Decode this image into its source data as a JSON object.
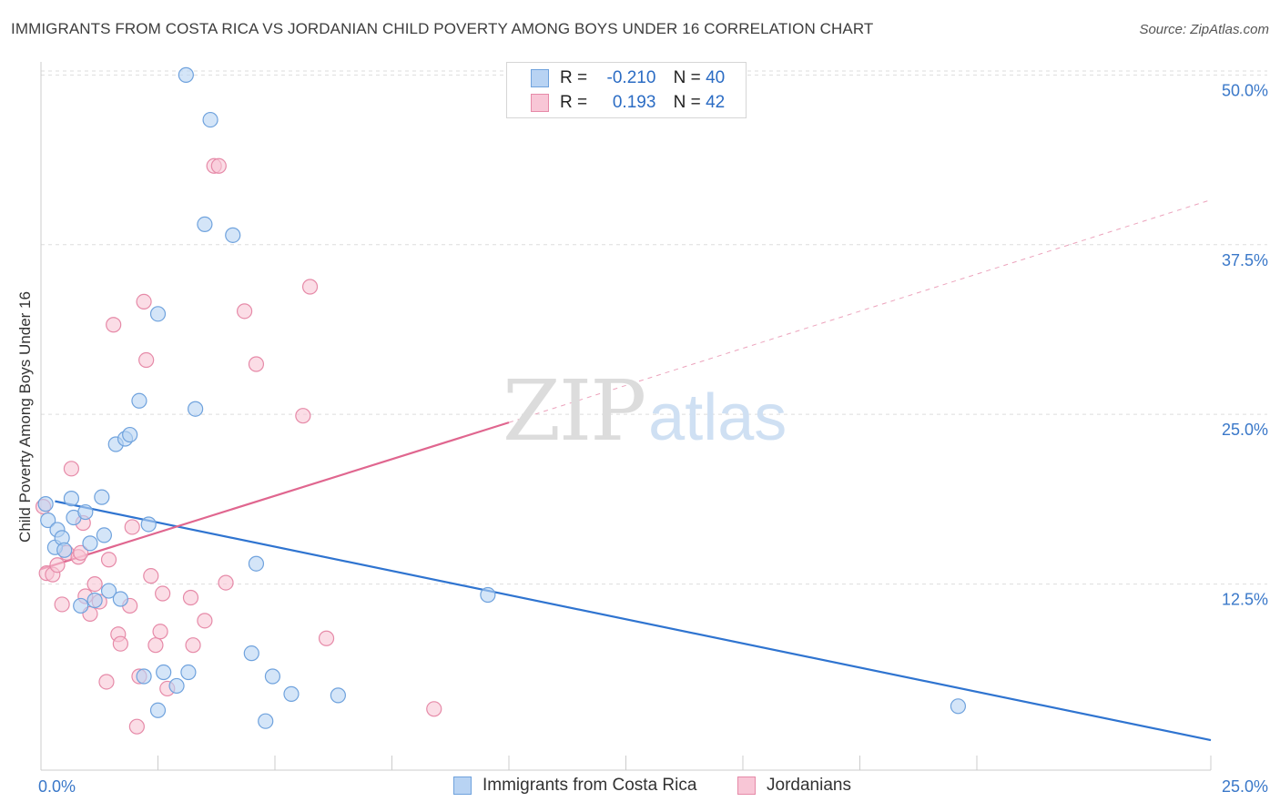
{
  "title": "IMMIGRANTS FROM COSTA RICA VS JORDANIAN CHILD POVERTY AMONG BOYS UNDER 16 CORRELATION CHART",
  "source": "Source: ZipAtlas.com",
  "watermark": {
    "zip": "ZIP",
    "atlas": "atlas"
  },
  "colors": {
    "blue_fill": "#b8d3f3",
    "blue_stroke": "#6fa2dd",
    "blue_line": "#2f74d0",
    "pink_fill": "#f8c6d6",
    "pink_stroke": "#e68aa8",
    "pink_line": "#e0668f",
    "tick_label": "#3a78c9",
    "grid": "#dddddd"
  },
  "legend": {
    "rows": [
      {
        "r_label": "R =",
        "r_value": "-0.210",
        "n_label": "N =",
        "n_value": "40"
      },
      {
        "r_label": "R =",
        "r_value": "0.193",
        "n_label": "N =",
        "n_value": "42"
      }
    ]
  },
  "bottom_legend": [
    "Immigrants from Costa Rica",
    "Jordanians"
  ],
  "chart_data": {
    "type": "scatter",
    "title": "IMMIGRANTS FROM COSTA RICA VS JORDANIAN CHILD POVERTY AMONG BOYS UNDER 16 CORRELATION CHART",
    "xlabel": "",
    "ylabel": "Child Poverty Among Boys Under 16",
    "xlim": [
      0,
      25
    ],
    "ylim": [
      0,
      51.5
    ],
    "x_tick_labels": [
      "0.0%",
      "25.0%"
    ],
    "y_ticks": [
      12.5,
      25.0,
      37.5,
      50.0
    ],
    "y_tick_labels": [
      "12.5%",
      "25.0%",
      "37.5%",
      "50.0%"
    ],
    "x_minor_ticks": [
      2.5,
      5.0,
      7.5,
      10.0,
      12.5,
      15.0,
      17.5,
      20.0
    ],
    "grid": true,
    "legend_position": "top-center",
    "series": [
      {
        "name": "Immigrants from Costa Rica",
        "r": -0.21,
        "n": 40,
        "points": [
          [
            0.1,
            18.4
          ],
          [
            0.15,
            17.2
          ],
          [
            0.3,
            15.2
          ],
          [
            0.35,
            16.5
          ],
          [
            0.45,
            15.9
          ],
          [
            0.5,
            15.0
          ],
          [
            0.65,
            18.8
          ],
          [
            0.7,
            17.4
          ],
          [
            0.85,
            10.9
          ],
          [
            0.95,
            17.8
          ],
          [
            1.05,
            15.5
          ],
          [
            1.15,
            11.3
          ],
          [
            1.3,
            18.9
          ],
          [
            1.35,
            16.1
          ],
          [
            1.45,
            12.0
          ],
          [
            1.6,
            22.8
          ],
          [
            1.7,
            11.4
          ],
          [
            1.8,
            23.2
          ],
          [
            1.9,
            23.5
          ],
          [
            2.1,
            26.0
          ],
          [
            2.2,
            5.7
          ],
          [
            2.3,
            16.9
          ],
          [
            2.5,
            32.4
          ],
          [
            2.62,
            6.0
          ],
          [
            2.9,
            5.0
          ],
          [
            2.5,
            3.2
          ],
          [
            3.1,
            50.0
          ],
          [
            3.15,
            6.0
          ],
          [
            3.3,
            25.4
          ],
          [
            3.5,
            39.0
          ],
          [
            3.62,
            46.7
          ],
          [
            4.1,
            38.2
          ],
          [
            4.5,
            7.4
          ],
          [
            4.6,
            14.0
          ],
          [
            4.8,
            2.4
          ],
          [
            4.95,
            5.7
          ],
          [
            5.35,
            4.4
          ],
          [
            6.35,
            4.3
          ],
          [
            9.55,
            11.7
          ],
          [
            19.6,
            3.5
          ]
        ],
        "trend": {
          "x0": 0.3,
          "y0": 18.6,
          "x1": 25.0,
          "y1": 1.0
        }
      },
      {
        "name": "Jordanians",
        "r": 0.193,
        "n": 42,
        "points": [
          [
            0.05,
            18.2
          ],
          [
            0.12,
            13.3
          ],
          [
            0.25,
            13.2
          ],
          [
            0.35,
            13.9
          ],
          [
            0.45,
            11.0
          ],
          [
            0.55,
            14.8
          ],
          [
            0.65,
            21.0
          ],
          [
            0.8,
            14.5
          ],
          [
            0.85,
            14.8
          ],
          [
            0.9,
            17.0
          ],
          [
            0.95,
            11.6
          ],
          [
            1.05,
            10.3
          ],
          [
            1.15,
            12.5
          ],
          [
            1.25,
            11.2
          ],
          [
            1.4,
            5.3
          ],
          [
            1.45,
            14.3
          ],
          [
            1.55,
            31.6
          ],
          [
            1.65,
            8.8
          ],
          [
            1.7,
            8.1
          ],
          [
            1.9,
            10.9
          ],
          [
            1.95,
            16.7
          ],
          [
            2.05,
            2.0
          ],
          [
            2.1,
            5.7
          ],
          [
            2.2,
            33.3
          ],
          [
            2.25,
            29.0
          ],
          [
            2.35,
            13.1
          ],
          [
            2.45,
            8.0
          ],
          [
            2.55,
            9.0
          ],
          [
            2.6,
            11.8
          ],
          [
            2.7,
            4.8
          ],
          [
            3.2,
            11.5
          ],
          [
            3.25,
            8.0
          ],
          [
            3.5,
            9.8
          ],
          [
            3.7,
            43.3
          ],
          [
            3.8,
            43.3
          ],
          [
            3.95,
            12.6
          ],
          [
            4.35,
            32.6
          ],
          [
            4.6,
            28.7
          ],
          [
            5.6,
            24.9
          ],
          [
            5.75,
            34.4
          ],
          [
            6.1,
            8.5
          ],
          [
            8.4,
            3.3
          ]
        ],
        "trend_solid": {
          "x0": 0.0,
          "y0": 13.6,
          "x1": 10.0,
          "y1": 24.4
        },
        "trend_dashed": {
          "x0": 10.0,
          "y0": 24.4,
          "x1": 25.0,
          "y1": 40.8
        }
      }
    ]
  }
}
